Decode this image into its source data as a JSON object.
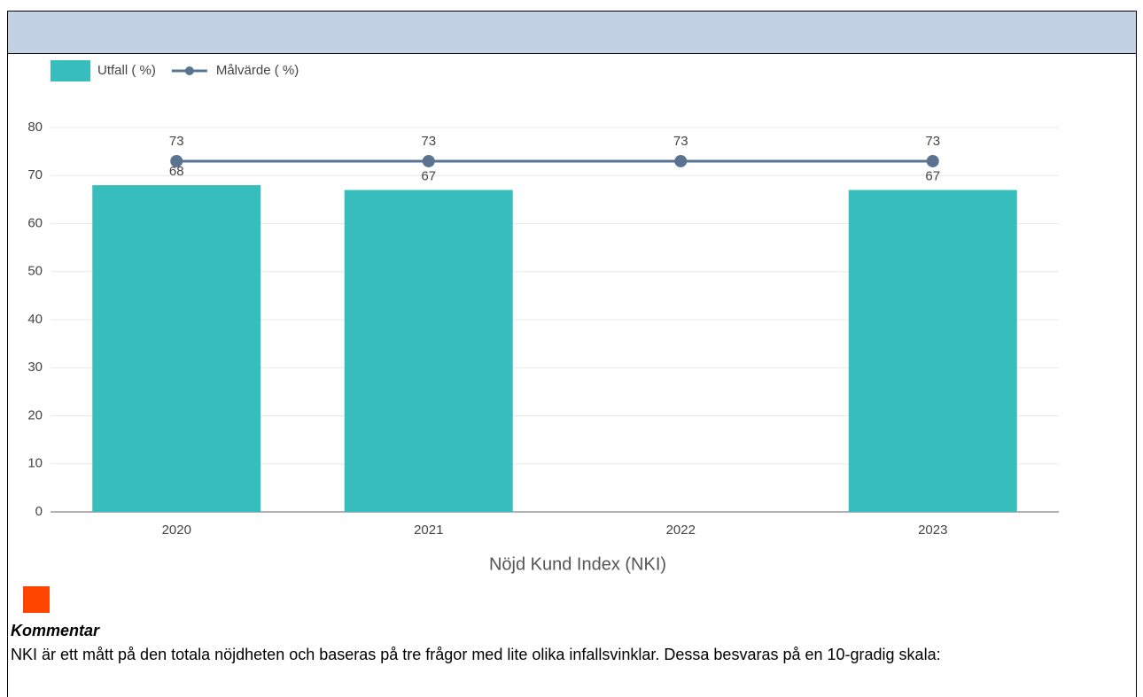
{
  "chart_data": {
    "type": "bar",
    "xlabel": "Nöjd Kund Index (NKI)",
    "categories": [
      "2020",
      "2021",
      "2022",
      "2023"
    ],
    "series": [
      {
        "name": "Utfall ( %)",
        "type": "bar",
        "color": "#38bdbd",
        "values": [
          68,
          67,
          null,
          67
        ]
      },
      {
        "name": "Målvärde ( %)",
        "type": "line",
        "color": "#5a7390",
        "values": [
          73,
          73,
          73,
          73
        ]
      }
    ],
    "ylim": [
      0,
      80
    ],
    "yticks": [
      0,
      10,
      20,
      30,
      40,
      50,
      60,
      70,
      80
    ],
    "grid": true,
    "legend": "top-left"
  },
  "comment": {
    "title": "Kommentar",
    "text": "NKI är ett mått på den totala nöjdheten och baseras på tre frågor med lite olika infallsvinklar. Dessa besvaras på en 10-gradig skala:"
  }
}
